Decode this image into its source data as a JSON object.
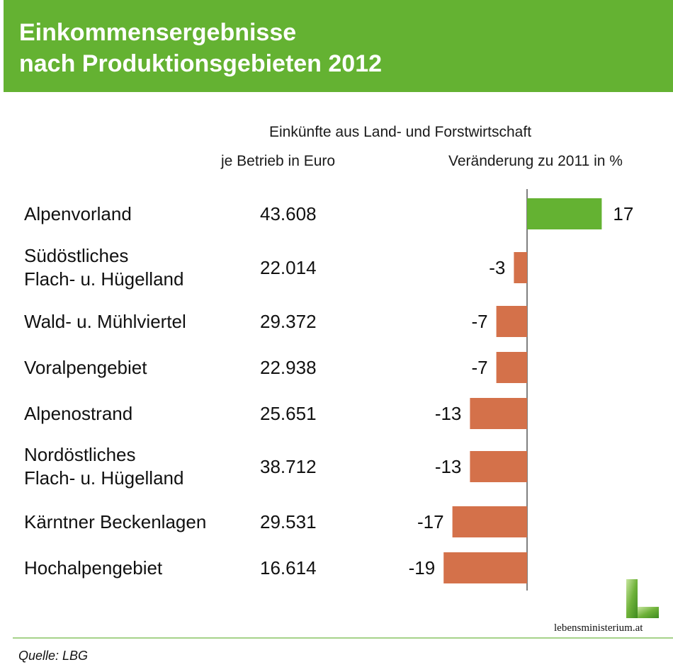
{
  "title_line1": "Einkommensergebnisse",
  "title_line2": "nach Produktionsgebieten 2012",
  "header_super": "Einkünfte aus Land- und Forstwirtschaft",
  "col_income_label": "je Betrieb in Euro",
  "col_change_label": "Veränderung zu 2011 in %",
  "source": "Quelle: LBG",
  "logo_text": "lebensministerium.at",
  "colors": {
    "header": "#64b232",
    "positive": "#64b232",
    "negative": "#d4714a",
    "axis": "#000000"
  },
  "chart_data": {
    "type": "bar",
    "orientation": "horizontal",
    "categories": [
      [
        "Alpenvorland"
      ],
      [
        "Südöstliches",
        "Flach- u. Hügelland"
      ],
      [
        "Wald- u. Mühlviertel"
      ],
      [
        "Voralpengebiet"
      ],
      [
        "Alpenostrand"
      ],
      [
        "Nordöstliches",
        "Flach- u. Hügelland"
      ],
      [
        "Kärntner Beckenlagen"
      ],
      [
        "Hochalpengebiet"
      ]
    ],
    "income_per_farm_eur": [
      "43.608",
      "22.014",
      "29.372",
      "22.938",
      "25.651",
      "38.712",
      "29.531",
      "16.614"
    ],
    "change_pct": [
      17,
      -3,
      -7,
      -7,
      -13,
      -13,
      -17,
      -19
    ],
    "change_labels": [
      "17",
      "-3",
      "-7",
      "-7",
      "-13",
      "-13",
      "-17",
      "-19"
    ]
  }
}
